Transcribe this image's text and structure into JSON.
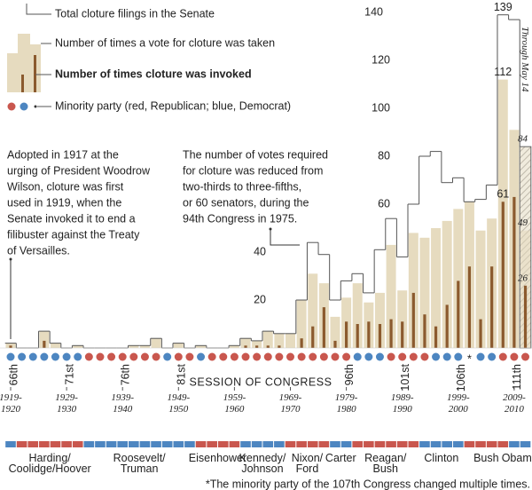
{
  "chart_data": {
    "type": "bar",
    "legend": {
      "filings": "Total cloture filings in the Senate",
      "votes": "Number of times a vote for cloture was taken",
      "invoked": "Number of times cloture was invoked",
      "party": "Minority party (red, Republican; blue, Democrat)"
    },
    "annotations": [
      [
        "Adopted in 1917 at the",
        "urging of President Woodrow",
        "Wilson, cloture was first",
        "used in 1919, when the",
        "Senate invoked it to end a",
        "filibuster against the Treaty",
        "of Versailles."
      ],
      [
        "The number of votes required",
        "for cloture was reduced from",
        "two-thirds to three-fifths,",
        "or 60 senators, during the",
        "94th Congress in 1975."
      ]
    ],
    "partial_note": "Through May 14",
    "x_label": "SESSION OF CONGRESS",
    "footnote": "*The minority party of the 107th Congress changed multiple times.",
    "categories": [
      "66th",
      null,
      null,
      null,
      null,
      "71st",
      null,
      null,
      null,
      null,
      "76th",
      null,
      null,
      null,
      null,
      "81st",
      null,
      null,
      null,
      null,
      null,
      null,
      null,
      null,
      null,
      null,
      null,
      null,
      null,
      null,
      "96th",
      null,
      null,
      null,
      null,
      "101st",
      null,
      null,
      null,
      null,
      "106th",
      null,
      null,
      null,
      null,
      "111th",
      null
    ],
    "year_labels": [
      [
        "1919-",
        "1920"
      ],
      null,
      null,
      null,
      null,
      [
        "1929-",
        "1930"
      ],
      null,
      null,
      null,
      null,
      [
        "1939-",
        "1940"
      ],
      null,
      null,
      null,
      null,
      [
        "1949-",
        "1950"
      ],
      null,
      null,
      null,
      null,
      [
        "1959-",
        "1960"
      ],
      null,
      null,
      null,
      null,
      [
        "1969-",
        "1970"
      ],
      null,
      null,
      null,
      null,
      [
        "1979-",
        "1980"
      ],
      null,
      null,
      null,
      null,
      [
        "1989-",
        "1990"
      ],
      null,
      null,
      null,
      null,
      [
        "1999-",
        "2000"
      ],
      null,
      null,
      null,
      null,
      [
        "2009-",
        "2010"
      ],
      null
    ],
    "series": [
      {
        "name": "Total cloture filings in the Senate",
        "color": "#555555",
        "values": [
          2,
          0,
          0,
          7,
          2,
          0,
          1,
          0,
          0,
          0,
          0,
          1,
          1,
          4,
          0,
          2,
          0,
          1,
          0,
          0,
          1,
          4,
          3,
          7,
          6,
          6,
          20,
          44,
          39,
          20,
          28,
          31,
          23,
          41,
          54,
          38,
          60,
          80,
          82,
          69,
          71,
          61,
          62,
          68,
          139,
          137,
          84
        ],
        "value_labels": [
          null,
          null,
          null,
          null,
          null,
          null,
          null,
          null,
          null,
          null,
          null,
          null,
          null,
          null,
          null,
          null,
          null,
          null,
          null,
          null,
          null,
          null,
          null,
          null,
          null,
          null,
          null,
          null,
          null,
          null,
          null,
          null,
          null,
          null,
          null,
          null,
          null,
          null,
          null,
          null,
          null,
          null,
          null,
          null,
          "139",
          null,
          "84"
        ]
      },
      {
        "name": "Number of times a vote for cloture was taken",
        "color": "#e6dbbf",
        "values": [
          2,
          0,
          0,
          7,
          2,
          0,
          1,
          0,
          0,
          0,
          0,
          1,
          1,
          4,
          0,
          2,
          0,
          1,
          0,
          0,
          1,
          4,
          3,
          7,
          6,
          6,
          20,
          31,
          27,
          13,
          21,
          27,
          19,
          23,
          43,
          24,
          48,
          46,
          50,
          53,
          58,
          61,
          49,
          54,
          112,
          91,
          49
        ],
        "value_labels": [
          null,
          null,
          null,
          null,
          null,
          null,
          null,
          null,
          null,
          null,
          null,
          null,
          null,
          null,
          null,
          null,
          null,
          null,
          null,
          null,
          null,
          null,
          null,
          null,
          null,
          null,
          null,
          null,
          null,
          null,
          null,
          null,
          null,
          null,
          null,
          null,
          null,
          null,
          null,
          null,
          null,
          null,
          null,
          null,
          "112",
          null,
          "49"
        ]
      },
      {
        "name": "Number of times cloture was invoked",
        "color": "#8b5a2e",
        "values": [
          1,
          0,
          0,
          3,
          0,
          0,
          0,
          0,
          0,
          0,
          0,
          0,
          0,
          0,
          0,
          0,
          0,
          0,
          0,
          0,
          0,
          1,
          1,
          1,
          1,
          0,
          4,
          9,
          17,
          3,
          11,
          10,
          11,
          10,
          12,
          11,
          23,
          14,
          9,
          18,
          28,
          34,
          12,
          34,
          61,
          63,
          26
        ],
        "value_labels": [
          null,
          null,
          null,
          null,
          null,
          null,
          null,
          null,
          null,
          null,
          null,
          null,
          null,
          null,
          null,
          null,
          null,
          null,
          null,
          null,
          null,
          null,
          null,
          null,
          null,
          null,
          null,
          null,
          null,
          null,
          null,
          null,
          null,
          null,
          null,
          null,
          null,
          null,
          null,
          null,
          null,
          null,
          null,
          null,
          "61",
          null,
          "26"
        ]
      }
    ],
    "minority_party": [
      "D",
      "D",
      "D",
      "D",
      "D",
      "D",
      "D",
      "R",
      "R",
      "R",
      "R",
      "R",
      "R",
      "R",
      "D",
      "R",
      "R",
      "D",
      "R",
      "R",
      "R",
      "R",
      "R",
      "R",
      "R",
      "R",
      "R",
      "R",
      "R",
      "R",
      "R",
      "D",
      "D",
      "D",
      "R",
      "R",
      "R",
      "R",
      "D",
      "D",
      "D",
      "*",
      "D",
      "D",
      "R",
      "R",
      "R"
    ],
    "party_colors": {
      "R": "#c9574e",
      "D": "#4d86c1"
    },
    "presidents": [
      {
        "label": null,
        "party": "D",
        "span": [
          66,
          66
        ]
      },
      {
        "label": [
          "Harding/",
          "Coolidge/Hoover"
        ],
        "party": "R",
        "span": [
          67,
          72
        ]
      },
      {
        "label": [
          "Roosevelt/",
          "Truman"
        ],
        "party": "D",
        "span": [
          73,
          82
        ]
      },
      {
        "label": [
          "Eisenhower"
        ],
        "party": "R",
        "span": [
          83,
          86
        ]
      },
      {
        "label": [
          "Kennedy/",
          "Johnson"
        ],
        "party": "D",
        "span": [
          87,
          90
        ]
      },
      {
        "label": [
          "Nixon/",
          "Ford"
        ],
        "party": "R",
        "span": [
          91,
          94
        ]
      },
      {
        "label": [
          "Carter"
        ],
        "party": "D",
        "span": [
          95,
          96
        ]
      },
      {
        "label": [
          "Reagan/",
          "Bush"
        ],
        "party": "R",
        "span": [
          97,
          102
        ]
      },
      {
        "label": [
          "Clinton"
        ],
        "party": "D",
        "span": [
          103,
          106
        ]
      },
      {
        "label": [
          "Bush"
        ],
        "party": "R",
        "span": [
          107,
          110
        ]
      },
      {
        "label": [
          "Obama"
        ],
        "party": "D",
        "span": [
          111,
          112
        ]
      }
    ],
    "ylim": [
      0,
      140
    ],
    "yticks": [
      20,
      40,
      60,
      80,
      100,
      120,
      140
    ]
  }
}
